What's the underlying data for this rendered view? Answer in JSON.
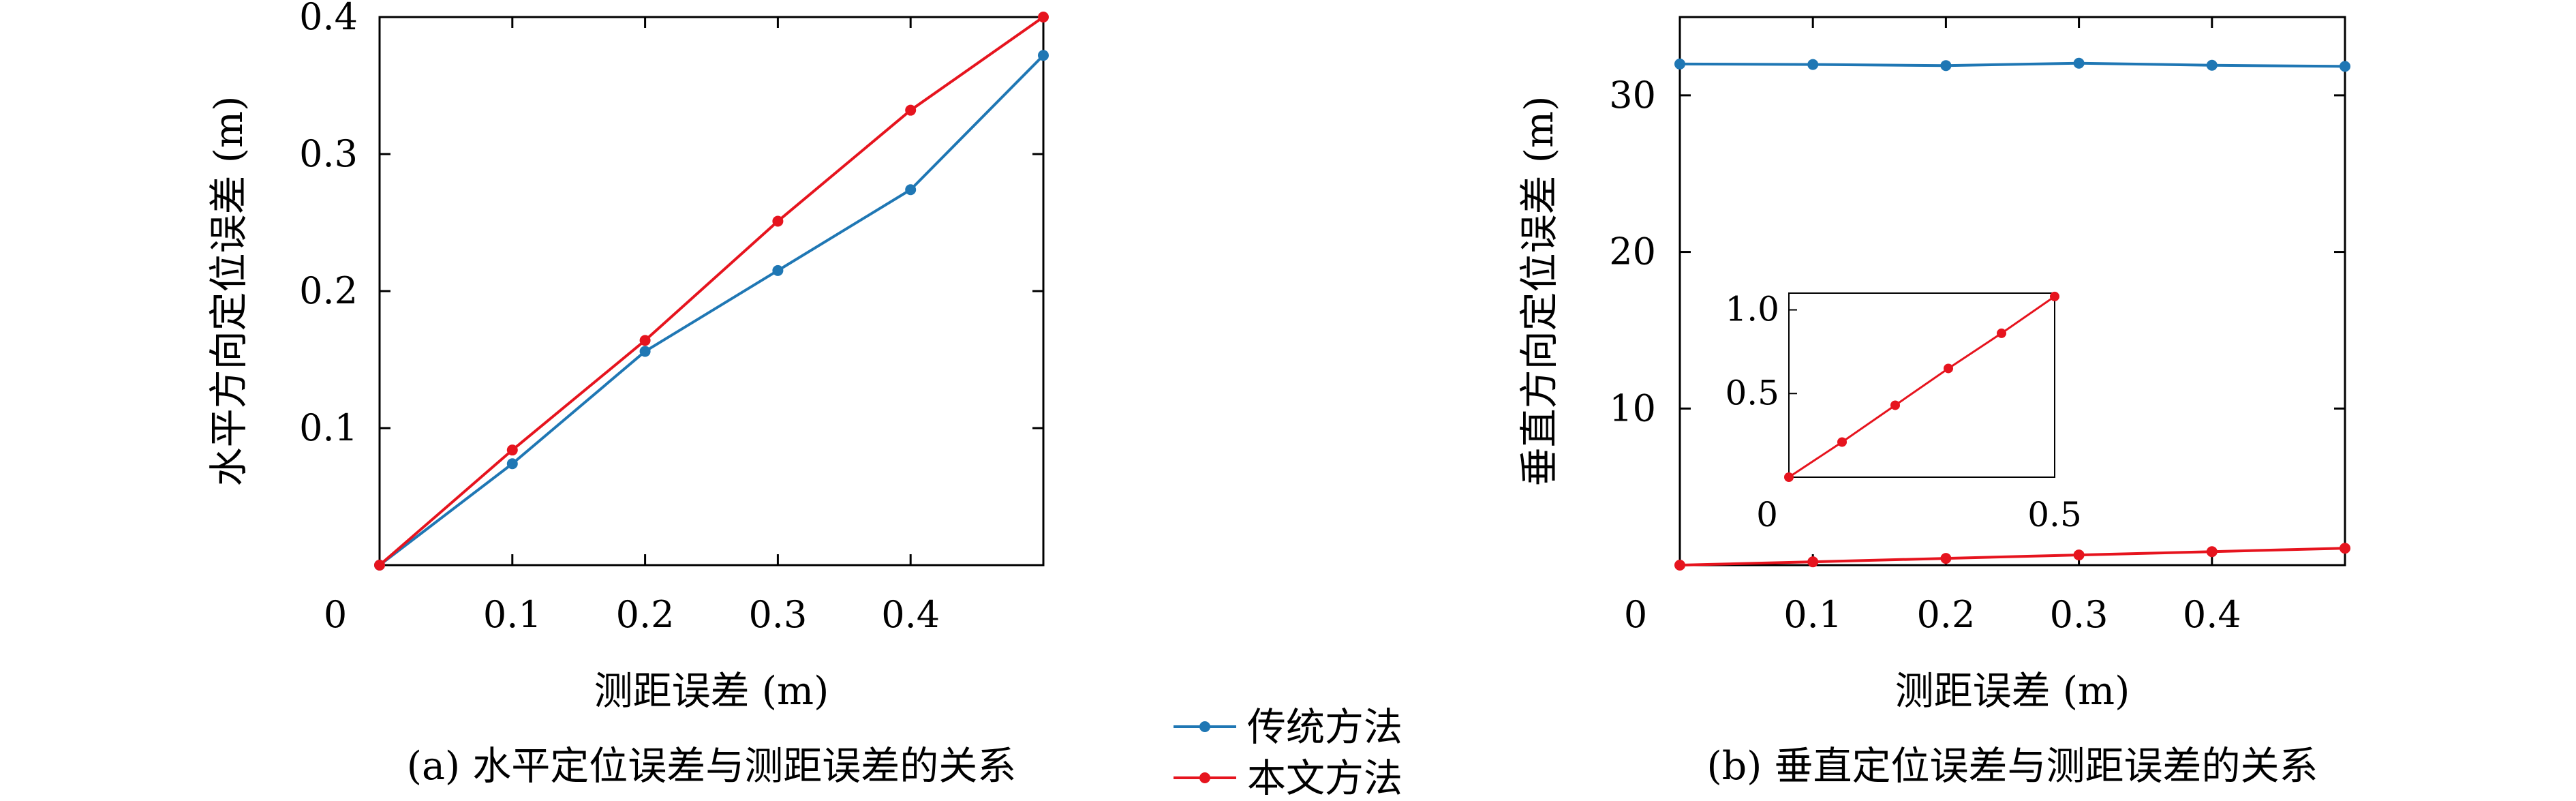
{
  "colors": {
    "traditional": "#1f77b4",
    "proposed": "#e6141e",
    "axis": "#000000"
  },
  "legend": {
    "placement": "bottom-center",
    "items": [
      {
        "label": "传统方法",
        "series": "traditional"
      },
      {
        "label": "本文方法",
        "series": "proposed"
      }
    ]
  },
  "chart_data": [
    {
      "id": "a",
      "type": "line",
      "caption": "(a) 水平定位误差与测距误差的关系",
      "xlabel": "测距误差 (m)",
      "ylabel": "水平方向定位误差 (m)",
      "xlim": [
        0,
        0.5
      ],
      "ylim": [
        0,
        0.4
      ],
      "xticks": [
        "0",
        "0.1",
        "0.2",
        "0.3",
        "0.4"
      ],
      "yticks": [
        "0.1",
        "0.2",
        "0.3",
        "0.4"
      ],
      "grid": false,
      "series": [
        {
          "key": "traditional",
          "x": [
            0,
            0.1,
            0.2,
            0.3,
            0.4,
            0.5
          ],
          "y": [
            0,
            0.074,
            0.156,
            0.215,
            0.274,
            0.372
          ]
        },
        {
          "key": "proposed",
          "x": [
            0,
            0.1,
            0.2,
            0.3,
            0.4,
            0.5
          ],
          "y": [
            0,
            0.084,
            0.164,
            0.251,
            0.332,
            0.4
          ]
        }
      ]
    },
    {
      "id": "b",
      "type": "line",
      "caption": "(b) 垂直定位误差与测距误差的关系",
      "xlabel": "测距误差 (m)",
      "ylabel": "垂直方向定位误差 (m)",
      "xlim": [
        0,
        0.5
      ],
      "ylim": [
        0,
        35
      ],
      "xticks": [
        "0",
        "0.1",
        "0.2",
        "0.3",
        "0.4"
      ],
      "yticks": [
        "10",
        "20",
        "30"
      ],
      "grid": false,
      "series": [
        {
          "key": "traditional",
          "x": [
            0,
            0.1,
            0.2,
            0.3,
            0.4,
            0.5
          ],
          "y": [
            32.0,
            31.97,
            31.9,
            32.05,
            31.92,
            31.85
          ]
        },
        {
          "key": "proposed",
          "x": [
            0,
            0.1,
            0.2,
            0.3,
            0.4,
            0.5
          ],
          "y": [
            0,
            0.21,
            0.43,
            0.65,
            0.86,
            1.08
          ]
        }
      ],
      "inset": {
        "type": "line",
        "xlim": [
          0,
          0.5
        ],
        "ylim": [
          0,
          1.1
        ],
        "xticks": [
          "0",
          "0.5"
        ],
        "yticks": [
          "0.5",
          "1.0"
        ],
        "series": [
          {
            "key": "proposed",
            "x": [
              0,
              0.1,
              0.2,
              0.3,
              0.4,
              0.5
            ],
            "y": [
              0,
              0.21,
              0.43,
              0.65,
              0.86,
              1.08
            ]
          }
        ]
      }
    }
  ]
}
